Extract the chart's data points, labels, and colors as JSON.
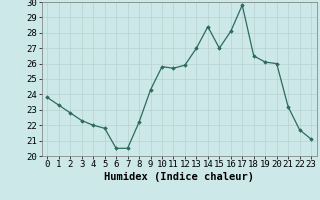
{
  "x": [
    0,
    1,
    2,
    3,
    4,
    5,
    6,
    7,
    8,
    9,
    10,
    11,
    12,
    13,
    14,
    15,
    16,
    17,
    18,
    19,
    20,
    21,
    22,
    23
  ],
  "y": [
    23.8,
    23.3,
    22.8,
    22.3,
    22.0,
    21.8,
    20.5,
    20.5,
    22.2,
    24.3,
    25.8,
    25.7,
    25.9,
    27.0,
    28.4,
    27.0,
    28.1,
    29.8,
    26.5,
    26.1,
    26.0,
    23.2,
    21.7,
    21.1
  ],
  "xlabel": "Humidex (Indice chaleur)",
  "ylim": [
    20,
    30
  ],
  "yticks": [
    20,
    21,
    22,
    23,
    24,
    25,
    26,
    27,
    28,
    29,
    30
  ],
  "xticks": [
    0,
    1,
    2,
    3,
    4,
    5,
    6,
    7,
    8,
    9,
    10,
    11,
    12,
    13,
    14,
    15,
    16,
    17,
    18,
    19,
    20,
    21,
    22,
    23
  ],
  "line_color": "#2d6b5e",
  "marker": "D",
  "marker_size": 1.8,
  "bg_color": "#cde8e8",
  "grid_color": "#b8d0d0",
  "xlabel_fontsize": 7.5,
  "tick_fontsize": 6.5
}
